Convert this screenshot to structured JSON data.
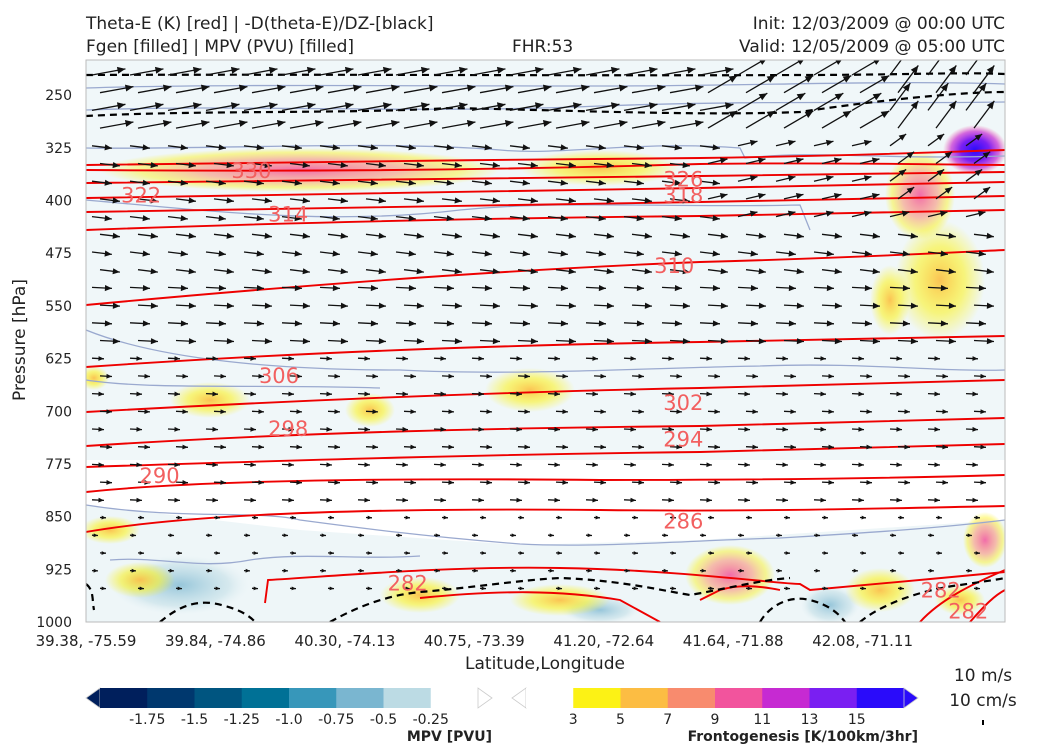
{
  "header": {
    "left_line1": "Theta-E (K) [red] | -D(theta-E)/DZ-[black]",
    "left_line2": "Fgen [filled] | MPV (PVU) [filled]",
    "center": "FHR:53",
    "right_line1": "Init: 12/03/2009 @ 00:00 UTC",
    "right_line2": "Valid: 12/05/2009 @ 05:00 UTC"
  },
  "chart_data": {
    "type": "cross-section",
    "xlabel": "Latitude,Longitude",
    "ylabel": "Pressure [hPa]",
    "x_ticks": [
      "39.38, -75.59",
      "39.84, -74.86",
      "40.30, -74.13",
      "40.75, -73.39",
      "41.20, -72.64",
      "41.64, -71.88",
      "42.08, -71.11"
    ],
    "y_ticks": [
      "250",
      "325",
      "400",
      "475",
      "550",
      "625",
      "700",
      "775",
      "850",
      "925",
      "1000"
    ],
    "ylim": [
      1000,
      200
    ],
    "theta_e_labels": [
      {
        "value": "330",
        "xi": 0.18,
        "p": 358
      },
      {
        "value": "326",
        "xi": 0.65,
        "p": 370
      },
      {
        "value": "322",
        "xi": 0.06,
        "p": 393
      },
      {
        "value": "318",
        "xi": 0.65,
        "p": 393
      },
      {
        "value": "314",
        "xi": 0.22,
        "p": 420
      },
      {
        "value": "310",
        "xi": 0.64,
        "p": 493
      },
      {
        "value": "306",
        "xi": 0.21,
        "p": 650
      },
      {
        "value": "302",
        "xi": 0.65,
        "p": 688
      },
      {
        "value": "298",
        "xi": 0.22,
        "p": 725
      },
      {
        "value": "294",
        "xi": 0.65,
        "p": 740
      },
      {
        "value": "290",
        "xi": 0.08,
        "p": 792
      },
      {
        "value": "286",
        "xi": 0.65,
        "p": 857
      },
      {
        "value": "282",
        "xi": 0.35,
        "p": 945
      },
      {
        "value": "282",
        "xi": 0.93,
        "p": 955
      },
      {
        "value": "282",
        "xi": 0.96,
        "p": 985
      }
    ],
    "vector_scale": {
      "label1": "10 m/s",
      "label2": "10 cm/s"
    },
    "colorbar_mpv": {
      "label": "MPV [PVU]",
      "ticks": [
        "-1.75",
        "-1.5",
        "-1.25",
        "-1.0",
        "-0.75",
        "-0.5",
        "-0.25"
      ],
      "colors": [
        "#001f5c",
        "#00386e",
        "#005580",
        "#007196",
        "#3797ba",
        "#7ab6d0",
        "#bcdbe4",
        "#ffffff"
      ]
    },
    "colorbar_fgen": {
      "label": "Frontogenesis [K/100km/3hr]",
      "ticks": [
        "3",
        "5",
        "7",
        "9",
        "11",
        "13",
        "15"
      ],
      "colors": [
        "#ffffff",
        "#fcf215",
        "#fcbd43",
        "#f88b6e",
        "#f2549d",
        "#c62ad2",
        "#7a1ff2",
        "#2a0bfa"
      ]
    }
  },
  "colors": {
    "theta_e": "#ee0000",
    "theta_label": "#f26060",
    "stability": "#000000",
    "mpv_outline": "#9aa9cf",
    "frame": "#bbbbbb"
  }
}
